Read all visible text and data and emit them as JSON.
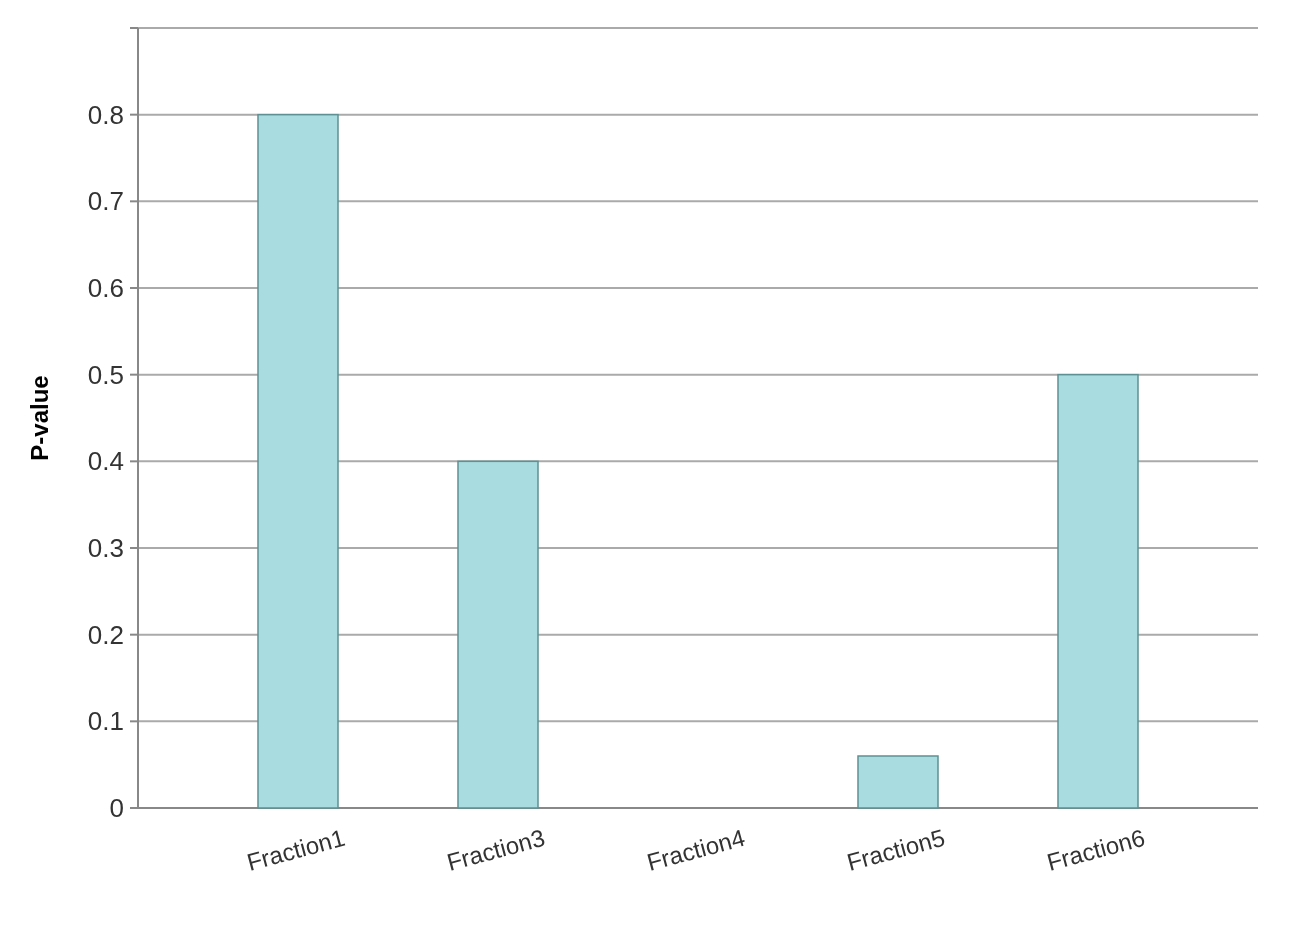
{
  "chart_data": {
    "type": "bar",
    "ylabel": "P-value",
    "categories": [
      "Fraction1",
      "Fraction3",
      "Fraction4",
      "Fraction5",
      "Fraction6"
    ],
    "values": [
      0.8,
      0.4,
      0,
      0.06,
      0.5
    ],
    "color": "#a8dce0",
    "ylim": [
      0,
      0.9
    ],
    "yticks": [
      0,
      0.1,
      0.2,
      0.3,
      0.4,
      0.5,
      0.6,
      0.7,
      0.8,
      {
        "value": 0.9,
        "label": null
      }
    ],
    "grid": "y"
  }
}
